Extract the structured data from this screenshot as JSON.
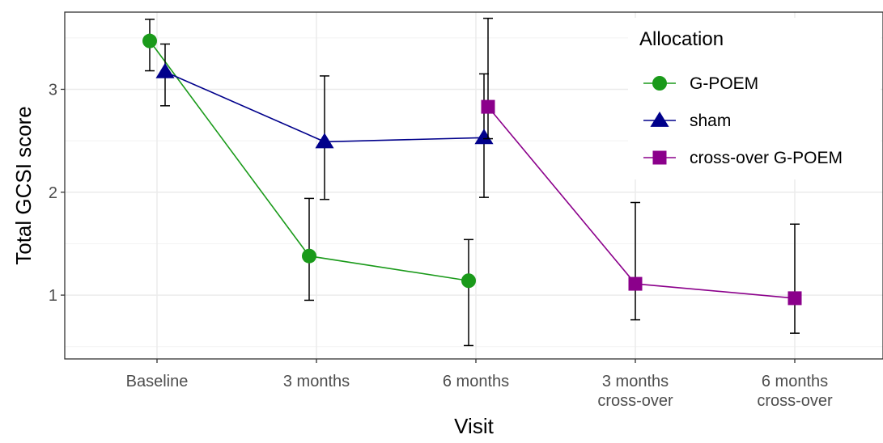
{
  "chart_data": {
    "type": "line",
    "title": "",
    "xlabel": "Visit",
    "ylabel": "Total GCSI score",
    "categories": [
      [
        "Baseline"
      ],
      [
        "3 months"
      ],
      [
        "6 months"
      ],
      [
        "3 months",
        "cross-over"
      ],
      [
        "6 months",
        "cross-over"
      ]
    ],
    "y_ticks": [
      "1",
      "2",
      "3"
    ],
    "ylim": [
      0.38,
      3.75
    ],
    "grid": true,
    "legend": {
      "title": "Allocation",
      "position": "top-right inside"
    },
    "series": [
      {
        "name": "G-POEM",
        "color": "#1a9a1a",
        "marker": "circle",
        "points": [
          {
            "category": 0,
            "y": 3.47,
            "lo": 3.18,
            "hi": 3.68
          },
          {
            "category": 1,
            "y": 1.38,
            "lo": 0.95,
            "hi": 1.94
          },
          {
            "category": 2,
            "y": 1.14,
            "lo": 0.51,
            "hi": 1.54
          }
        ]
      },
      {
        "name": "sham",
        "color": "#00008b",
        "marker": "triangle",
        "points": [
          {
            "category": 0,
            "y": 3.17,
            "lo": 2.84,
            "hi": 3.44
          },
          {
            "category": 1,
            "y": 2.49,
            "lo": 1.93,
            "hi": 3.13
          },
          {
            "category": 2,
            "y": 2.53,
            "lo": 1.95,
            "hi": 3.15
          }
        ]
      },
      {
        "name": "cross-over G-POEM",
        "color": "#8b008b",
        "marker": "square",
        "points": [
          {
            "category": 2,
            "y": 2.83,
            "lo": 2.52,
            "hi": 3.69
          },
          {
            "category": 3,
            "y": 1.11,
            "lo": 0.76,
            "hi": 1.9
          },
          {
            "category": 4,
            "y": 0.97,
            "lo": 0.63,
            "hi": 1.69
          }
        ]
      }
    ]
  }
}
